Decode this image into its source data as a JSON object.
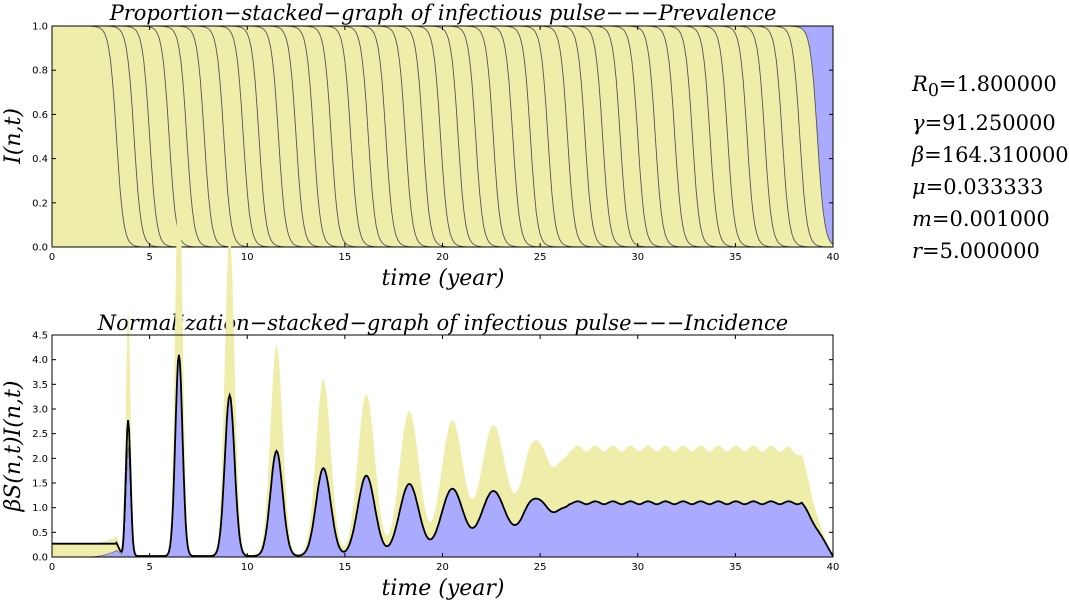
{
  "chart_data": [
    {
      "type": "area",
      "title": "Proportion−stacked−graph of infectious pulse−−−Prevalence",
      "xlabel": "time (year)",
      "ylabel": "I(n,t)",
      "xlim": [
        0,
        40
      ],
      "ylim": [
        0,
        1.0
      ],
      "xticks": [
        "0",
        "5",
        "10",
        "15",
        "20",
        "25",
        "30",
        "35",
        "40"
      ],
      "yticks": [
        "0.0",
        "0.2",
        "0.4",
        "0.6",
        "0.8",
        "1.0"
      ],
      "grid": false,
      "stacked": true,
      "series_colors": [
        "#aaaaff",
        "#a8d5a8",
        "#ffaaaa",
        "#aae8e8",
        "#e8aae8",
        "#eeeeaa",
        "#aaaaaa"
      ],
      "band_boundaries_x": [
        3.3,
        4.2,
        5.0,
        6.0,
        6.9,
        7.8,
        8.8,
        9.8,
        10.6,
        11.6,
        12.5,
        13.4,
        14.3,
        15.3,
        16.2,
        17.1,
        18.1,
        19.0,
        19.9,
        20.8,
        21.7,
        22.6,
        23.6,
        24.5,
        25.4,
        26.4,
        27.3,
        28.2,
        29.1,
        30.0,
        30.9,
        31.9,
        32.8,
        33.7,
        34.6,
        35.6,
        36.5,
        37.4,
        38.3,
        39.2
      ]
    },
    {
      "type": "area",
      "title": "Normalization−stacked−graph of infectious pulse−−−Incidence",
      "xlabel": "time (year)",
      "ylabel": "βS(n,t)I(n,t)",
      "xlim": [
        0,
        40
      ],
      "ylim": [
        0,
        4.5
      ],
      "xticks": [
        "0",
        "5",
        "10",
        "15",
        "20",
        "25",
        "30",
        "35",
        "40"
      ],
      "yticks": [
        "0.0",
        "0.5",
        "1.0",
        "1.5",
        "2.0",
        "2.5",
        "3.0",
        "3.5",
        "4.0",
        "4.5"
      ],
      "grid": false,
      "stacked": true,
      "baseline": 0.27,
      "peaks": [
        {
          "x": 3.9,
          "y": 2.78
        },
        {
          "x": 6.5,
          "y": 4.1
        },
        {
          "x": 9.1,
          "y": 3.28
        },
        {
          "x": 11.5,
          "y": 2.15
        },
        {
          "x": 13.9,
          "y": 1.8
        },
        {
          "x": 16.1,
          "y": 1.65
        },
        {
          "x": 18.3,
          "y": 1.48
        },
        {
          "x": 20.5,
          "y": 1.38
        },
        {
          "x": 22.6,
          "y": 1.33
        },
        {
          "x": 24.8,
          "y": 1.23
        }
      ],
      "plateau": 1.1
    }
  ],
  "parameters": [
    {
      "symbol": "R",
      "sub": "0",
      "value": "=1.800000"
    },
    {
      "symbol": "γ",
      "sub": "",
      "value": "=91.250000"
    },
    {
      "symbol": "β",
      "sub": "",
      "value": "=164.310000"
    },
    {
      "symbol": "μ",
      "sub": "",
      "value": "=0.033333"
    },
    {
      "symbol": "m",
      "sub": "",
      "value": "=0.001000"
    },
    {
      "symbol": "r",
      "sub": "",
      "value": "=5.000000"
    }
  ]
}
